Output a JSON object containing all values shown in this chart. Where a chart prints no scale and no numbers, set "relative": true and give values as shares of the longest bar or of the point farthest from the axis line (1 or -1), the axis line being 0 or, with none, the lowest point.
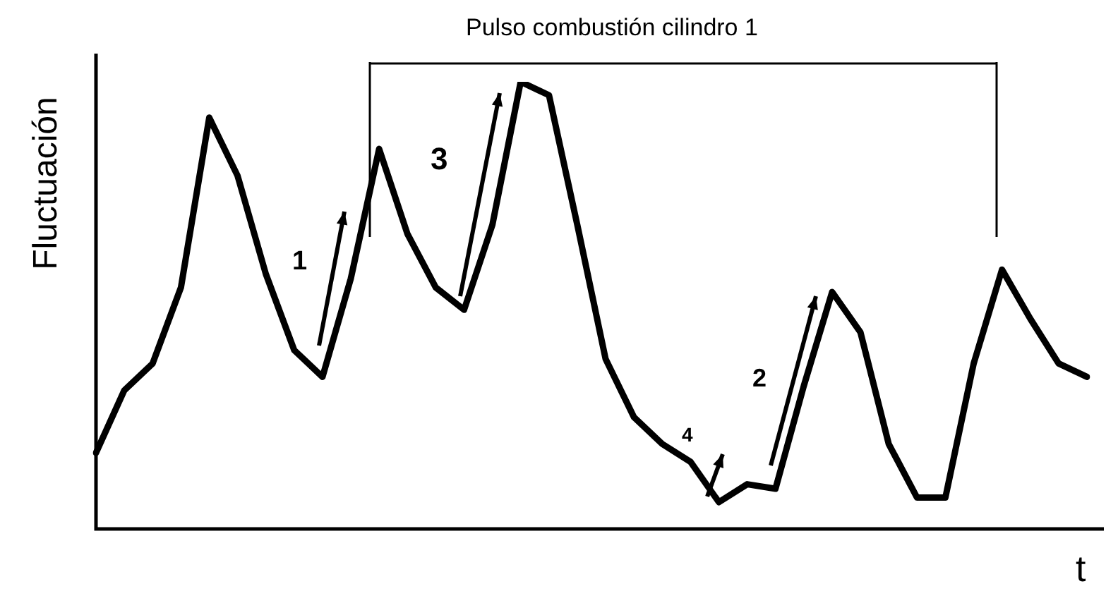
{
  "chart_data": {
    "type": "line",
    "relative": true,
    "ylabel": "Fluctuación",
    "xlabel": "t",
    "color": "#000000",
    "grid": false,
    "legend": false,
    "marker": "none",
    "line_style": "solid",
    "categories": [
      null,
      null,
      null,
      null,
      null,
      null,
      null,
      null,
      null,
      null,
      null,
      null,
      null,
      null,
      null,
      null,
      null,
      null,
      null,
      null,
      null,
      null,
      null,
      null,
      null,
      null,
      null,
      null,
      null,
      null,
      null,
      null,
      null,
      null,
      null,
      null
    ],
    "values": [
      0.17,
      0.31,
      0.37,
      0.54,
      0.92,
      0.79,
      0.57,
      0.4,
      0.34,
      0.56,
      0.85,
      0.66,
      0.54,
      0.49,
      0.68,
      1,
      0.97,
      0.68,
      0.38,
      0.25,
      0.19,
      0.15,
      0.06,
      0.1,
      0.09,
      0.32,
      0.53,
      0.44,
      0.19,
      0.07,
      0.07,
      0.37,
      0.58,
      0.47,
      0.37,
      0.34
    ],
    "annotations": [
      "Pulso combustión cilindro 1",
      "1",
      "3",
      "2",
      "4"
    ]
  }
}
